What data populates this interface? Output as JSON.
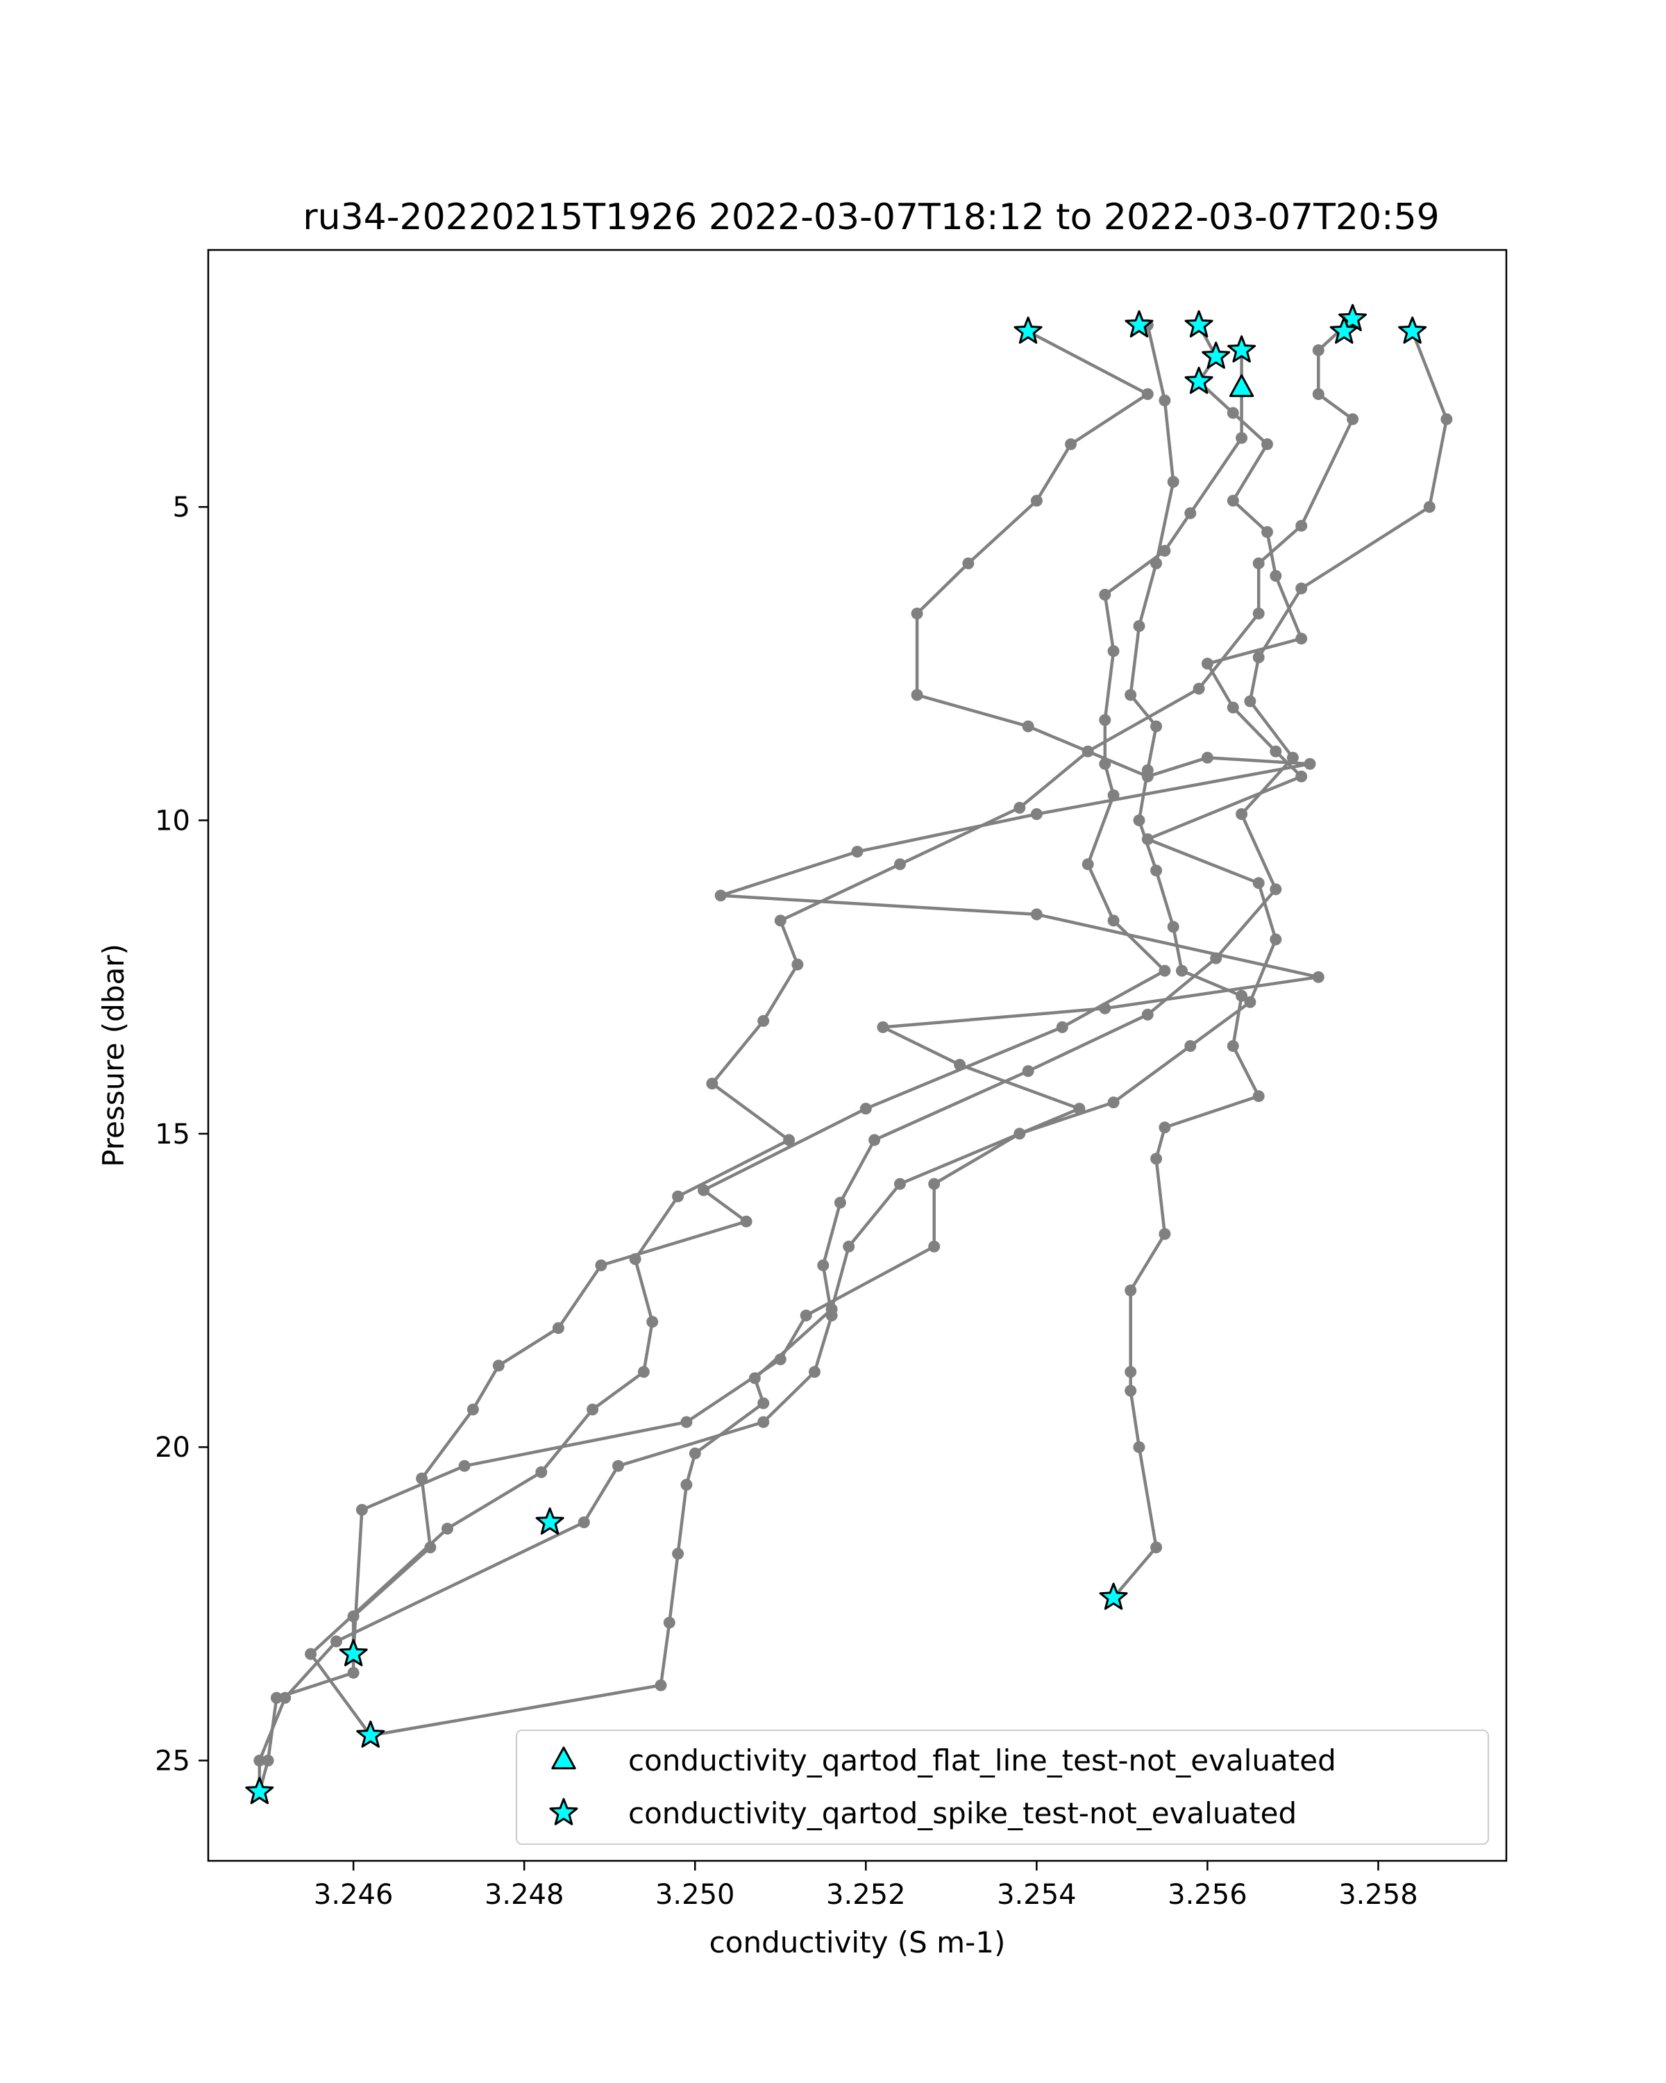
{
  "chart_data": {
    "type": "line",
    "title": "ru34-20220215T1926 2022-03-07T18:12 to 2022-03-07T20:59",
    "xlabel": "conductivity (S m-1)",
    "ylabel": "Pressure (dbar)",
    "xlim": [
      3.2443,
      3.2595
    ],
    "ylim": [
      26.6,
      0.9
    ],
    "y_inverted": true,
    "xticks": [
      3.246,
      3.248,
      3.25,
      3.252,
      3.254,
      3.256,
      3.258
    ],
    "xtick_labels": [
      "3.246",
      "3.248",
      "3.250",
      "3.252",
      "3.254",
      "3.256",
      "3.258"
    ],
    "yticks": [
      5,
      10,
      15,
      20,
      25
    ],
    "ytick_labels": [
      "5",
      "10",
      "15",
      "20",
      "25"
    ],
    "grid": false,
    "legend_position": "bottom-right",
    "line_color": "#808080",
    "marker_fill": "#00FFFF",
    "series": [
      {
        "values": [
          [
            3.2539,
            2.2
          ],
          [
            3.2553,
            3.2
          ],
          [
            3.2544,
            4.0
          ],
          [
            3.254,
            4.9
          ],
          [
            3.2532,
            5.9
          ],
          [
            3.2526,
            6.7
          ],
          [
            3.2526,
            8.0
          ],
          [
            3.2539,
            8.5
          ],
          [
            3.2553,
            9.3
          ],
          [
            3.256,
            9.0
          ],
          [
            3.2572,
            9.1
          ],
          [
            3.254,
            9.9
          ],
          [
            3.2519,
            10.5
          ],
          [
            3.2503,
            11.2
          ],
          [
            3.254,
            11.5
          ],
          [
            3.2573,
            12.5
          ],
          [
            3.2548,
            13.0
          ],
          [
            3.2522,
            13.3
          ],
          [
            3.2531,
            13.9
          ],
          [
            3.2545,
            14.6
          ],
          [
            3.2524,
            15.8
          ],
          [
            3.2518,
            16.8
          ],
          [
            3.2516,
            17.8
          ],
          [
            3.2507,
            18.9
          ],
          [
            3.2508,
            19.3
          ],
          [
            3.25,
            20.1
          ],
          [
            3.2499,
            20.6
          ],
          [
            3.2498,
            21.7
          ],
          [
            3.2497,
            22.8
          ],
          [
            3.2496,
            23.8
          ],
          [
            3.2462,
            24.6
          ]
        ]
      },
      {
        "values": [
          [
            3.2553,
            2.1
          ],
          [
            3.2555,
            3.3
          ],
          [
            3.2556,
            4.6
          ],
          [
            3.2554,
            5.9
          ],
          [
            3.2552,
            6.9
          ],
          [
            3.2551,
            8.0
          ],
          [
            3.2554,
            8.5
          ],
          [
            3.2553,
            9.2
          ],
          [
            3.2552,
            10.0
          ],
          [
            3.2554,
            10.8
          ],
          [
            3.2556,
            11.7
          ],
          [
            3.2557,
            12.4
          ],
          [
            3.2564,
            12.8
          ],
          [
            3.2563,
            13.6
          ],
          [
            3.2566,
            14.4
          ],
          [
            3.2555,
            14.9
          ],
          [
            3.2554,
            15.4
          ],
          [
            3.2555,
            16.6
          ],
          [
            3.2551,
            17.5
          ],
          [
            3.2551,
            18.8
          ],
          [
            3.2551,
            19.1
          ],
          [
            3.2552,
            20.0
          ],
          [
            3.2554,
            21.6
          ],
          [
            3.2549,
            22.4
          ]
        ]
      },
      {
        "values": [
          [
            3.2559,
            2.1
          ],
          [
            3.2561,
            2.6
          ],
          [
            3.2559,
            3.0
          ],
          [
            3.2563,
            3.5
          ],
          [
            3.2567,
            4.0
          ],
          [
            3.2563,
            4.9
          ],
          [
            3.2567,
            5.4
          ],
          [
            3.2568,
            6.1
          ],
          [
            3.2571,
            7.1
          ],
          [
            3.256,
            7.5
          ],
          [
            3.2563,
            8.2
          ],
          [
            3.2568,
            8.9
          ],
          [
            3.2571,
            9.3
          ],
          [
            3.2553,
            10.3
          ],
          [
            3.2566,
            11.0
          ],
          [
            3.2568,
            11.9
          ],
          [
            3.2565,
            12.9
          ],
          [
            3.2558,
            13.6
          ],
          [
            3.2549,
            14.5
          ],
          [
            3.2538,
            15.0
          ],
          [
            3.2528,
            15.8
          ],
          [
            3.2528,
            16.8
          ],
          [
            3.2513,
            17.9
          ],
          [
            3.251,
            18.6
          ],
          [
            3.2499,
            19.6
          ],
          [
            3.2473,
            20.3
          ],
          [
            3.2461,
            21.0
          ],
          [
            3.246,
            23.3
          ]
        ]
      },
      {
        "values": [
          [
            3.2564,
            2.5
          ],
          [
            3.2564,
            3.1
          ],
          [
            3.2564,
            3.9
          ],
          [
            3.2558,
            5.1
          ],
          [
            3.2555,
            5.7
          ],
          [
            3.2548,
            6.4
          ],
          [
            3.2549,
            7.3
          ],
          [
            3.2548,
            8.4
          ],
          [
            3.2548,
            9.1
          ],
          [
            3.2549,
            9.6
          ],
          [
            3.2546,
            10.7
          ],
          [
            3.2549,
            11.6
          ],
          [
            3.2555,
            12.4
          ],
          [
            3.2543,
            13.3
          ],
          [
            3.252,
            14.6
          ],
          [
            3.2501,
            15.9
          ],
          [
            3.2506,
            16.4
          ],
          [
            3.2489,
            17.1
          ],
          [
            3.2484,
            18.1
          ],
          [
            3.2477,
            18.7
          ],
          [
            3.2474,
            19.4
          ],
          [
            3.2468,
            20.5
          ],
          [
            3.2469,
            21.6
          ],
          [
            3.246,
            22.7
          ],
          [
            3.246,
            23.3
          ],
          [
            3.246,
            23.6
          ],
          [
            3.2451,
            24.0
          ],
          [
            3.245,
            25.0
          ],
          [
            3.2449,
            25.5
          ]
        ]
      },
      {
        "values": [
          [
            3.2577,
            2.0
          ],
          [
            3.2573,
            2.5
          ],
          [
            3.2573,
            3.2
          ],
          [
            3.2577,
            3.6
          ],
          [
            3.2571,
            5.3
          ],
          [
            3.2566,
            5.9
          ],
          [
            3.2566,
            6.7
          ],
          [
            3.2559,
            7.9
          ],
          [
            3.2546,
            8.9
          ],
          [
            3.2538,
            9.8
          ],
          [
            3.2524,
            10.7
          ],
          [
            3.251,
            11.6
          ],
          [
            3.2512,
            12.3
          ],
          [
            3.2508,
            13.2
          ],
          [
            3.2502,
            14.2
          ],
          [
            3.2511,
            15.1
          ],
          [
            3.2498,
            16.0
          ],
          [
            3.2493,
            17.0
          ],
          [
            3.2495,
            18.0
          ],
          [
            3.2494,
            18.8
          ],
          [
            3.2488,
            19.4
          ],
          [
            3.2482,
            20.4
          ],
          [
            3.2471,
            21.3
          ],
          [
            3.2455,
            23.3
          ],
          [
            3.2462,
            24.6
          ]
        ]
      },
      {
        "values": [
          [
            3.2584,
            2.2
          ],
          [
            3.2588,
            3.6
          ],
          [
            3.2586,
            5.0
          ],
          [
            3.2571,
            6.3
          ],
          [
            3.2566,
            7.4
          ],
          [
            3.2565,
            8.1
          ],
          [
            3.257,
            9.0
          ],
          [
            3.2564,
            9.9
          ],
          [
            3.2568,
            11.1
          ],
          [
            3.2561,
            12.2
          ],
          [
            3.2553,
            13.1
          ],
          [
            3.2539,
            14.0
          ],
          [
            3.2521,
            15.1
          ],
          [
            3.2517,
            16.1
          ],
          [
            3.2515,
            17.1
          ],
          [
            3.2516,
            17.9
          ],
          [
            3.2514,
            18.8
          ],
          [
            3.2508,
            19.6
          ],
          [
            3.2491,
            20.3
          ],
          [
            3.2487,
            21.2
          ],
          [
            3.2458,
            23.1
          ],
          [
            3.2452,
            24.0
          ],
          [
            3.2449,
            25.0
          ],
          [
            3.2449,
            25.5
          ]
        ]
      }
    ],
    "spike_flags": [
      [
        3.2539,
        2.2
      ],
      [
        3.2552,
        2.1
      ],
      [
        3.2559,
        2.1
      ],
      [
        3.2561,
        2.6
      ],
      [
        3.2564,
        2.5
      ],
      [
        3.2559,
        3.0
      ],
      [
        3.2577,
        2.0
      ],
      [
        3.2576,
        2.2
      ],
      [
        3.2584,
        2.2
      ],
      [
        3.2483,
        21.2
      ],
      [
        3.246,
        23.3
      ],
      [
        3.2462,
        24.6
      ],
      [
        3.2449,
        25.5
      ],
      [
        3.2549,
        22.4
      ]
    ],
    "flat_line_flags": [
      [
        3.2564,
        3.1
      ]
    ],
    "legend": [
      {
        "marker": "triangle",
        "label": "conductivity_qartod_flat_line_test-not_evaluated"
      },
      {
        "marker": "star",
        "label": "conductivity_qartod_spike_test-not_evaluated"
      }
    ]
  }
}
